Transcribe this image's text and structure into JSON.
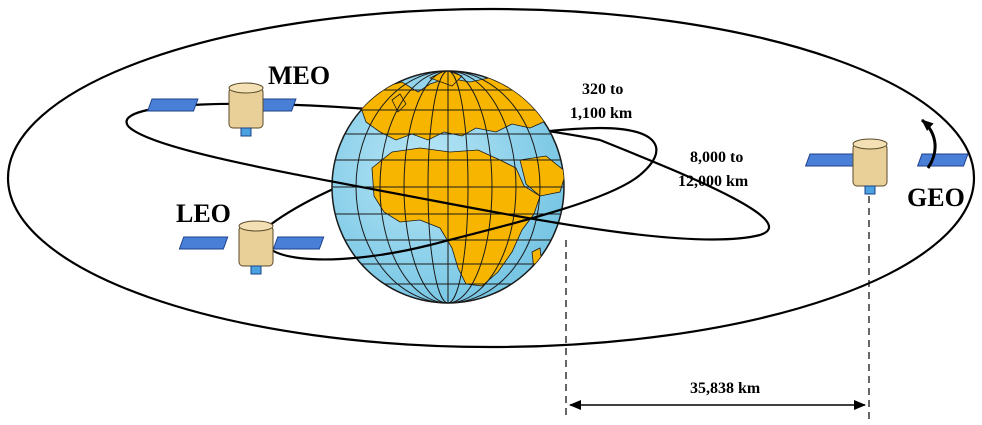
{
  "labels": {
    "meo": "MEO",
    "leo": "LEO",
    "geo": "GEO",
    "leo_alt_line1": "320 to",
    "leo_alt_line2": "1,100 km",
    "meo_alt_line1": "8,000 to",
    "meo_alt_line2": "12,000 km",
    "geo_distance": "35,838 km"
  },
  "colors": {
    "ocean": "#8fd3ec",
    "land": "#f7b500",
    "panel": "#4a7fd8",
    "satellite_body": "#e9cf98"
  }
}
